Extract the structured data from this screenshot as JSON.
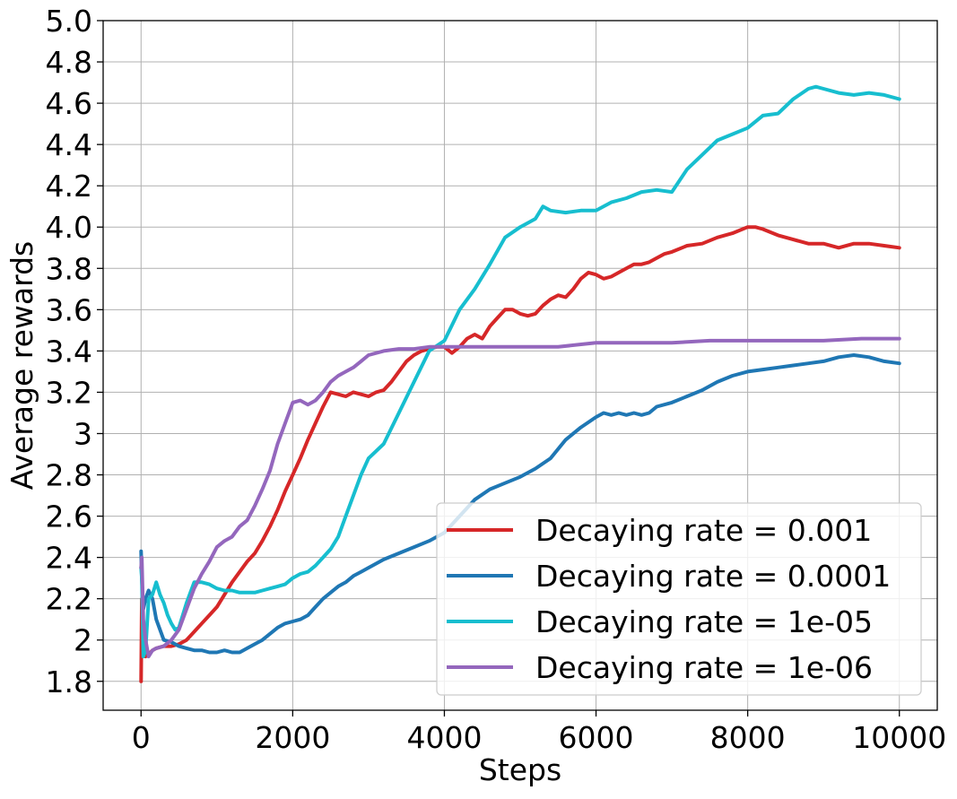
{
  "chart_data": {
    "type": "line",
    "title": "",
    "xlabel": "Steps",
    "ylabel": "Average rewards",
    "xlim": [
      -500,
      10500
    ],
    "ylim": [
      1.66,
      5.0
    ],
    "grid": true,
    "legend_position": "bottom-right",
    "x_ticks": [
      0,
      2000,
      4000,
      6000,
      8000,
      10000
    ],
    "x_tick_labels": [
      "0",
      "2000",
      "4000",
      "6000",
      "8000",
      "10000"
    ],
    "y_ticks": [
      1.8,
      2.0,
      2.2,
      2.4,
      2.6,
      2.8,
      3.0,
      3.2,
      3.4,
      3.6,
      3.8,
      4.0,
      4.2,
      4.4,
      4.6,
      4.8,
      5.0
    ],
    "y_tick_labels": [
      "1.8",
      "2",
      "2.2",
      "2.4",
      "2.6",
      "2.8",
      "3",
      "3.2",
      "3.4",
      "3.6",
      "3.8",
      "4.0",
      "4.2",
      "4.4",
      "4.6",
      "4.8",
      "5.0"
    ],
    "series": [
      {
        "name": "Decaying rate = 0.001",
        "color": "#d62728",
        "x": [
          0,
          10,
          30,
          60,
          100,
          150,
          200,
          300,
          400,
          500,
          600,
          700,
          800,
          900,
          1000,
          1100,
          1200,
          1300,
          1400,
          1500,
          1600,
          1700,
          1800,
          1900,
          2000,
          2100,
          2200,
          2300,
          2400,
          2500,
          2600,
          2700,
          2800,
          2900,
          3000,
          3100,
          3200,
          3300,
          3400,
          3500,
          3600,
          3700,
          3800,
          3900,
          4000,
          4100,
          4200,
          4300,
          4400,
          4500,
          4600,
          4700,
          4800,
          4900,
          5000,
          5100,
          5200,
          5300,
          5400,
          5500,
          5600,
          5700,
          5800,
          5900,
          6000,
          6100,
          6200,
          6300,
          6400,
          6500,
          6600,
          6700,
          6800,
          6900,
          7000,
          7200,
          7400,
          7600,
          7800,
          8000,
          8100,
          8200,
          8400,
          8600,
          8800,
          9000,
          9200,
          9400,
          9600,
          9800,
          10000
        ],
        "values": [
          1.8,
          2.2,
          1.95,
          1.92,
          1.93,
          1.95,
          1.96,
          1.97,
          1.97,
          1.98,
          2.0,
          2.04,
          2.08,
          2.12,
          2.16,
          2.22,
          2.28,
          2.33,
          2.38,
          2.42,
          2.48,
          2.55,
          2.63,
          2.72,
          2.8,
          2.88,
          2.97,
          3.05,
          3.13,
          3.2,
          3.19,
          3.18,
          3.2,
          3.19,
          3.18,
          3.2,
          3.21,
          3.25,
          3.3,
          3.35,
          3.38,
          3.4,
          3.41,
          3.42,
          3.42,
          3.39,
          3.42,
          3.46,
          3.48,
          3.46,
          3.52,
          3.56,
          3.6,
          3.6,
          3.58,
          3.57,
          3.58,
          3.62,
          3.65,
          3.67,
          3.66,
          3.7,
          3.75,
          3.78,
          3.77,
          3.75,
          3.76,
          3.78,
          3.8,
          3.82,
          3.82,
          3.83,
          3.85,
          3.87,
          3.88,
          3.91,
          3.92,
          3.95,
          3.97,
          4.0,
          4.0,
          3.99,
          3.96,
          3.94,
          3.92,
          3.92,
          3.9,
          3.92,
          3.92,
          3.91,
          3.9
        ]
      },
      {
        "name": "Decaying rate = 0.0001",
        "color": "#1f77b4",
        "x": [
          0,
          10,
          30,
          60,
          100,
          150,
          200,
          300,
          400,
          500,
          600,
          700,
          800,
          900,
          1000,
          1100,
          1200,
          1300,
          1400,
          1500,
          1600,
          1700,
          1800,
          1900,
          2000,
          2100,
          2200,
          2300,
          2400,
          2500,
          2600,
          2700,
          2800,
          2900,
          3000,
          3200,
          3400,
          3600,
          3800,
          4000,
          4200,
          4400,
          4600,
          4800,
          5000,
          5200,
          5400,
          5600,
          5800,
          6000,
          6100,
          6200,
          6300,
          6400,
          6500,
          6600,
          6700,
          6800,
          7000,
          7200,
          7400,
          7600,
          7800,
          8000,
          8200,
          8400,
          8600,
          8800,
          9000,
          9200,
          9400,
          9600,
          9800,
          10000
        ],
        "values": [
          2.43,
          2.3,
          2.15,
          2.2,
          2.24,
          2.2,
          2.1,
          2.0,
          1.99,
          1.97,
          1.96,
          1.95,
          1.95,
          1.94,
          1.94,
          1.95,
          1.94,
          1.94,
          1.96,
          1.98,
          2.0,
          2.03,
          2.06,
          2.08,
          2.09,
          2.1,
          2.12,
          2.16,
          2.2,
          2.23,
          2.26,
          2.28,
          2.31,
          2.33,
          2.35,
          2.39,
          2.42,
          2.45,
          2.48,
          2.52,
          2.6,
          2.68,
          2.73,
          2.76,
          2.79,
          2.83,
          2.88,
          2.97,
          3.03,
          3.08,
          3.1,
          3.09,
          3.1,
          3.09,
          3.1,
          3.09,
          3.1,
          3.13,
          3.15,
          3.18,
          3.21,
          3.25,
          3.28,
          3.3,
          3.31,
          3.32,
          3.33,
          3.34,
          3.35,
          3.37,
          3.38,
          3.37,
          3.35,
          3.34
        ]
      },
      {
        "name": "Decaying rate = 1e-05",
        "color": "#17becf",
        "x": [
          0,
          10,
          30,
          60,
          100,
          150,
          200,
          250,
          300,
          350,
          400,
          450,
          500,
          600,
          700,
          800,
          900,
          1000,
          1100,
          1200,
          1300,
          1400,
          1500,
          1600,
          1700,
          1800,
          1900,
          2000,
          2100,
          2200,
          2300,
          2400,
          2500,
          2600,
          2700,
          2800,
          2900,
          3000,
          3200,
          3400,
          3600,
          3800,
          4000,
          4200,
          4400,
          4600,
          4800,
          5000,
          5100,
          5200,
          5300,
          5400,
          5600,
          5800,
          6000,
          6200,
          6400,
          6600,
          6800,
          7000,
          7200,
          7400,
          7600,
          7800,
          8000,
          8200,
          8400,
          8600,
          8800,
          8900,
          9000,
          9200,
          9400,
          9600,
          9800,
          10000
        ],
        "values": [
          2.35,
          2.3,
          1.92,
          1.95,
          2.2,
          2.22,
          2.28,
          2.22,
          2.18,
          2.12,
          2.08,
          2.05,
          2.06,
          2.18,
          2.28,
          2.28,
          2.27,
          2.25,
          2.24,
          2.24,
          2.23,
          2.23,
          2.23,
          2.24,
          2.25,
          2.26,
          2.27,
          2.3,
          2.32,
          2.33,
          2.36,
          2.4,
          2.44,
          2.5,
          2.6,
          2.7,
          2.8,
          2.88,
          2.95,
          3.1,
          3.25,
          3.4,
          3.45,
          3.6,
          3.7,
          3.82,
          3.95,
          4.0,
          4.02,
          4.04,
          4.1,
          4.08,
          4.07,
          4.08,
          4.08,
          4.12,
          4.14,
          4.17,
          4.18,
          4.17,
          4.28,
          4.35,
          4.42,
          4.45,
          4.48,
          4.54,
          4.55,
          4.62,
          4.67,
          4.68,
          4.67,
          4.65,
          4.64,
          4.65,
          4.64,
          4.62
        ]
      },
      {
        "name": "Decaying rate = 1e-06",
        "color": "#9467bd",
        "x": [
          0,
          10,
          30,
          60,
          100,
          150,
          200,
          300,
          400,
          500,
          600,
          700,
          800,
          900,
          1000,
          1100,
          1200,
          1300,
          1400,
          1500,
          1600,
          1700,
          1800,
          1900,
          2000,
          2100,
          2200,
          2300,
          2400,
          2500,
          2600,
          2700,
          2800,
          2900,
          3000,
          3200,
          3400,
          3600,
          3800,
          4000,
          4500,
          5000,
          5500,
          6000,
          6500,
          7000,
          7500,
          8000,
          8500,
          9000,
          9500,
          10000
        ],
        "values": [
          2.35,
          2.4,
          2.1,
          2.0,
          1.92,
          1.95,
          1.96,
          1.97,
          2.0,
          2.05,
          2.15,
          2.25,
          2.32,
          2.38,
          2.45,
          2.48,
          2.5,
          2.55,
          2.58,
          2.65,
          2.73,
          2.82,
          2.95,
          3.05,
          3.15,
          3.16,
          3.14,
          3.16,
          3.2,
          3.25,
          3.28,
          3.3,
          3.32,
          3.35,
          3.38,
          3.4,
          3.41,
          3.41,
          3.42,
          3.42,
          3.42,
          3.42,
          3.42,
          3.44,
          3.44,
          3.44,
          3.45,
          3.45,
          3.45,
          3.45,
          3.46,
          3.46
        ]
      }
    ]
  }
}
